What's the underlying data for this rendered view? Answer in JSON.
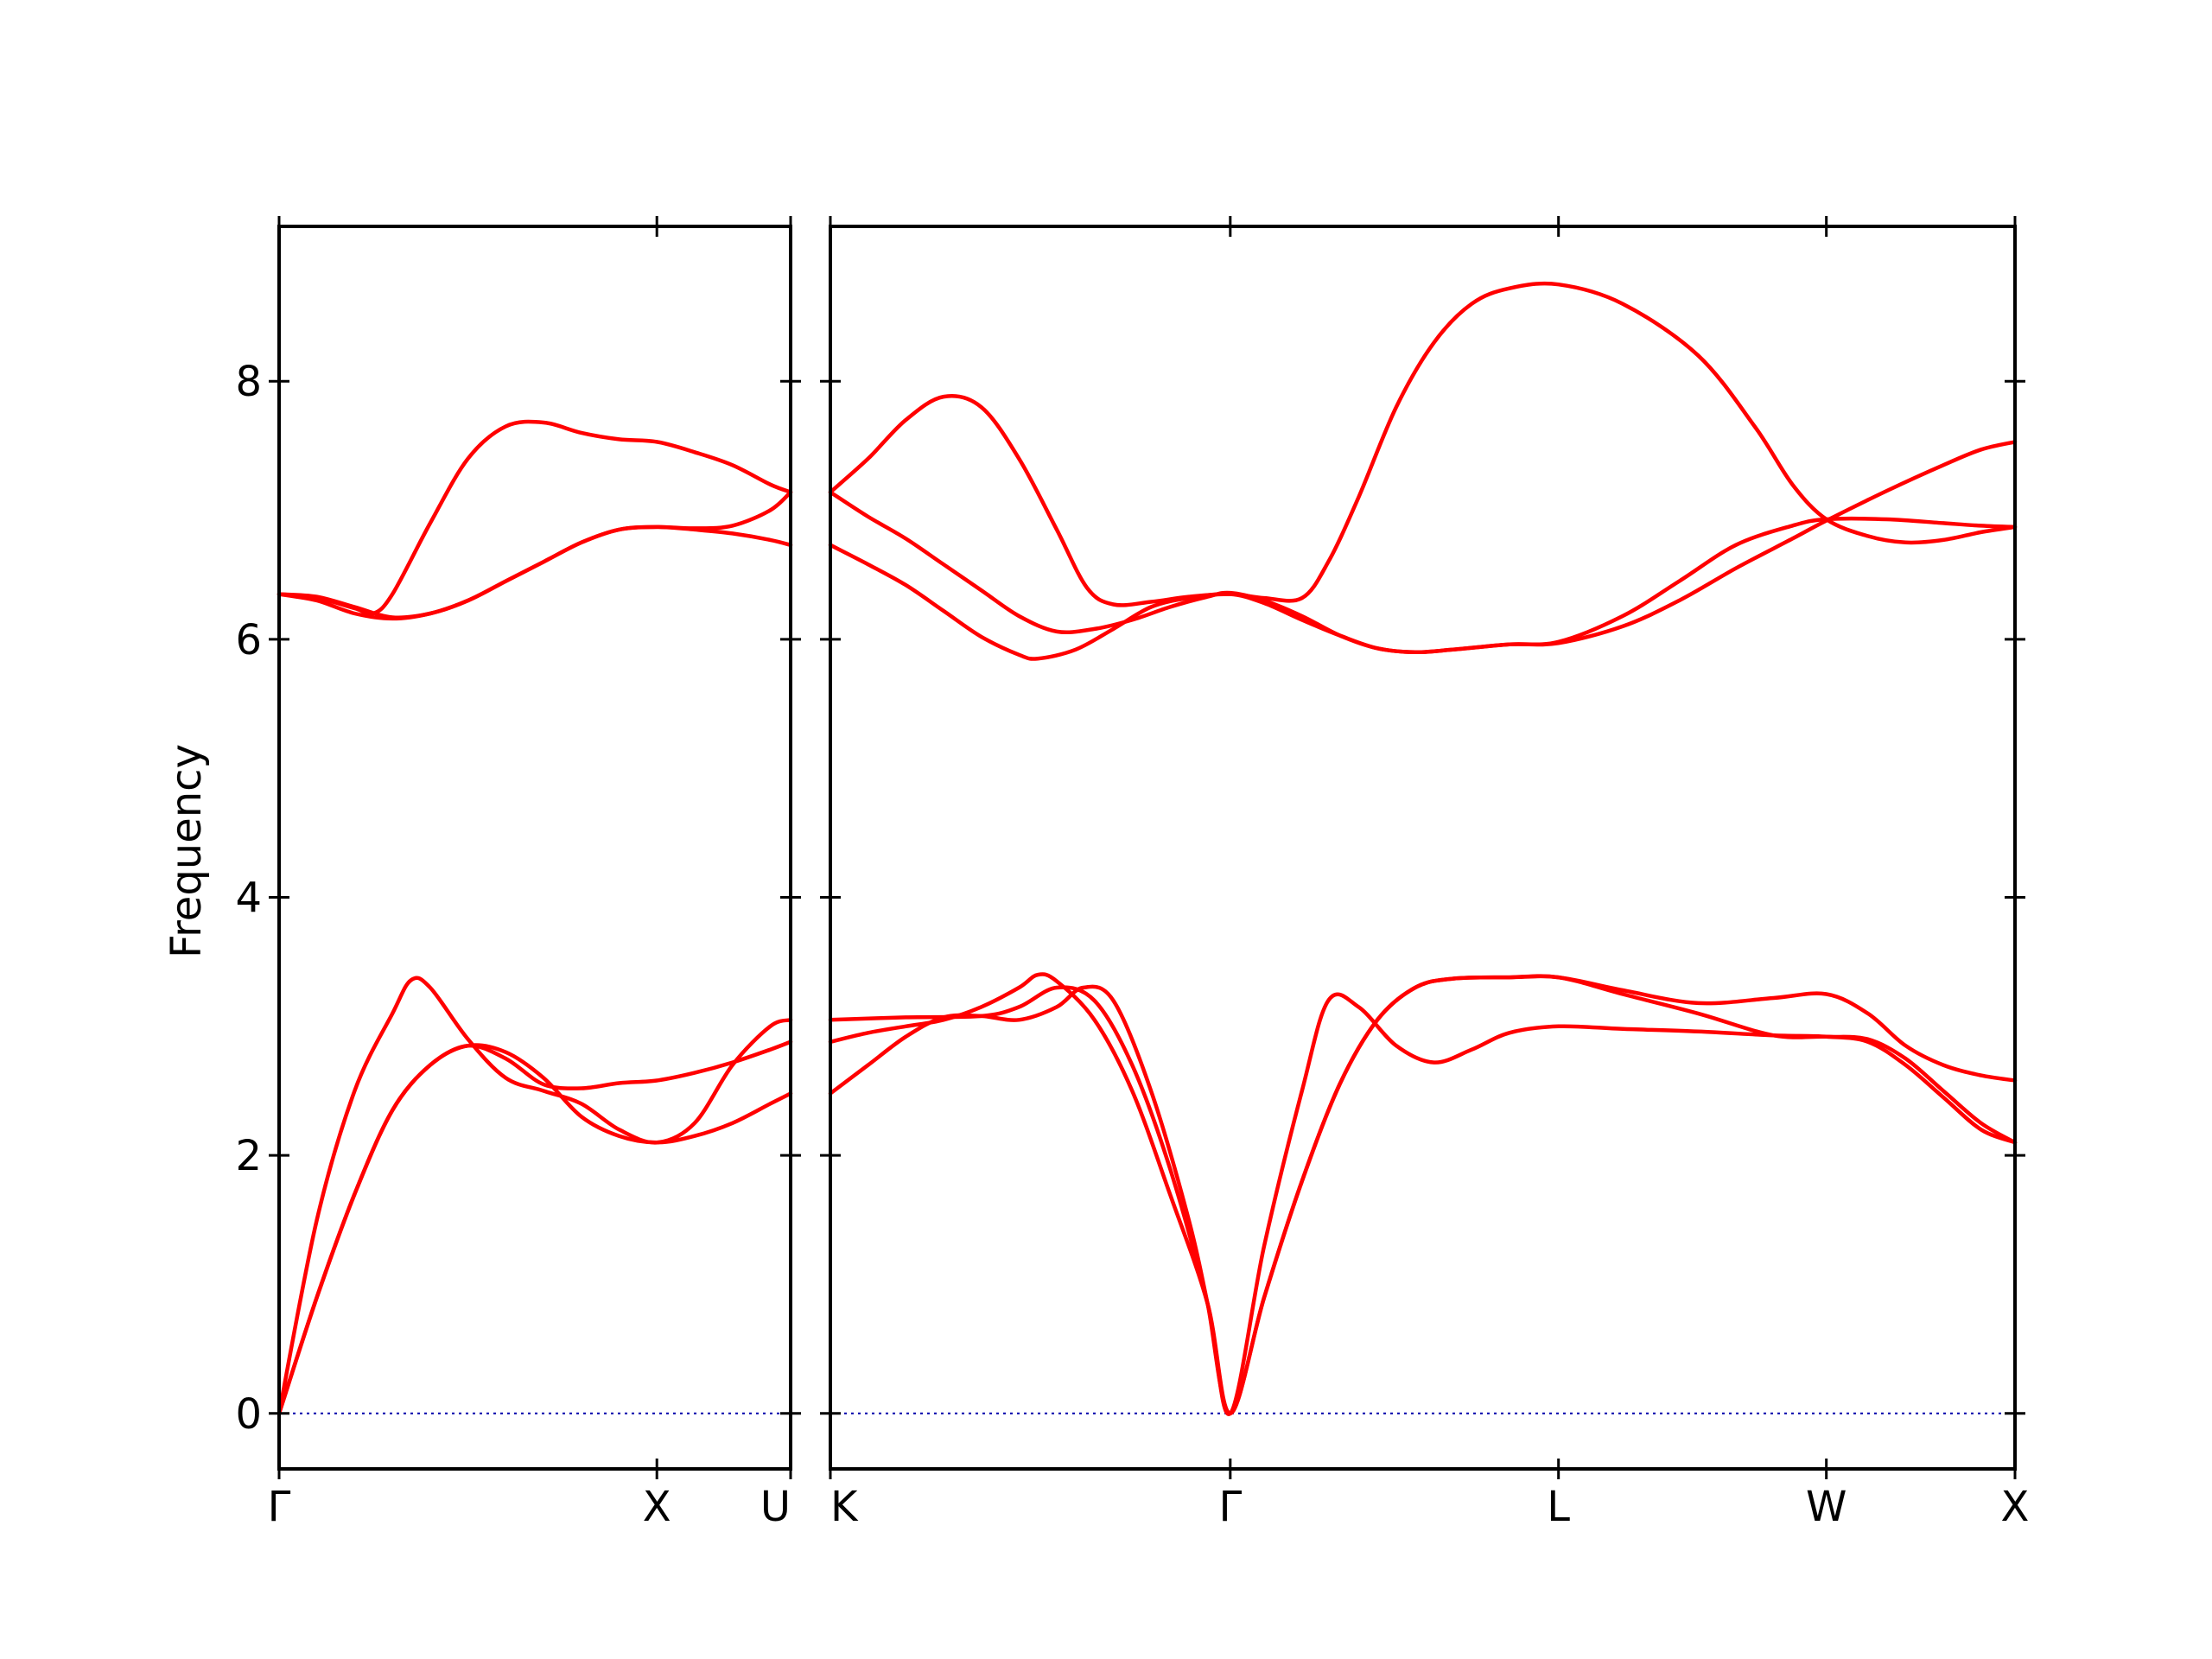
{
  "chart_data": {
    "type": "line",
    "ylabel": "Frequency",
    "ylim": [
      -0.43,
      9.2
    ],
    "yticks": [
      0,
      2,
      4,
      6,
      8
    ],
    "line_color": "#ff0000",
    "zero_line_color": "#0000aa",
    "grid": false,
    "panels": [
      {
        "xlim": [
          0,
          1.354
        ],
        "xticks": [
          {
            "x": 0,
            "label": "Γ"
          },
          {
            "x": 1.0,
            "label": "X"
          },
          {
            "x": 1.354,
            "label": "U"
          }
        ],
        "zero_line": true,
        "branches": [
          [
            [
              0,
              0
            ],
            [
              0.1,
              1.5
            ],
            [
              0.2,
              2.5
            ],
            [
              0.3,
              3.1
            ],
            [
              0.35,
              3.36
            ],
            [
              0.4,
              3.3
            ],
            [
              0.5,
              2.9
            ],
            [
              0.6,
              2.6
            ],
            [
              0.7,
              2.5
            ],
            [
              0.8,
              2.4
            ],
            [
              0.9,
              2.2
            ],
            [
              1.0,
              2.1
            ],
            [
              1.1,
              2.25
            ],
            [
              1.2,
              2.7
            ],
            [
              1.3,
              3.0
            ],
            [
              1.354,
              3.05
            ]
          ],
          [
            [
              0,
              0
            ],
            [
              0.1,
              0.9
            ],
            [
              0.2,
              1.7
            ],
            [
              0.3,
              2.35
            ],
            [
              0.4,
              2.7
            ],
            [
              0.5,
              2.85
            ],
            [
              0.6,
              2.8
            ],
            [
              0.7,
              2.6
            ],
            [
              0.8,
              2.3
            ],
            [
              0.9,
              2.15
            ],
            [
              1.0,
              2.1
            ],
            [
              1.1,
              2.15
            ],
            [
              1.2,
              2.25
            ],
            [
              1.3,
              2.4
            ],
            [
              1.354,
              2.48
            ]
          ],
          [
            [
              0,
              0
            ],
            [
              0.1,
              0.9
            ],
            [
              0.2,
              1.7
            ],
            [
              0.3,
              2.35
            ],
            [
              0.4,
              2.7
            ],
            [
              0.5,
              2.85
            ],
            [
              0.6,
              2.75
            ],
            [
              0.7,
              2.55
            ],
            [
              0.8,
              2.52
            ],
            [
              0.9,
              2.56
            ],
            [
              1.0,
              2.58
            ],
            [
              1.1,
              2.64
            ],
            [
              1.2,
              2.72
            ],
            [
              1.3,
              2.82
            ],
            [
              1.354,
              2.88
            ]
          ],
          [
            [
              0,
              6.35
            ],
            [
              0.1,
              6.32
            ],
            [
              0.2,
              6.24
            ],
            [
              0.25,
              6.2
            ],
            [
              0.3,
              6.35
            ],
            [
              0.4,
              6.9
            ],
            [
              0.5,
              7.4
            ],
            [
              0.6,
              7.65
            ],
            [
              0.7,
              7.68
            ],
            [
              0.8,
              7.6
            ],
            [
              0.9,
              7.55
            ],
            [
              1.0,
              7.53
            ],
            [
              1.1,
              7.45
            ],
            [
              1.2,
              7.35
            ],
            [
              1.3,
              7.2
            ],
            [
              1.354,
              7.14
            ]
          ],
          [
            [
              0,
              6.35
            ],
            [
              0.1,
              6.3
            ],
            [
              0.2,
              6.2
            ],
            [
              0.3,
              6.16
            ],
            [
              0.4,
              6.2
            ],
            [
              0.5,
              6.3
            ],
            [
              0.6,
              6.45
            ],
            [
              0.7,
              6.6
            ],
            [
              0.8,
              6.75
            ],
            [
              0.9,
              6.85
            ],
            [
              1.0,
              6.87
            ],
            [
              1.1,
              6.85
            ],
            [
              1.2,
              6.82
            ],
            [
              1.3,
              6.77
            ],
            [
              1.354,
              6.73
            ]
          ],
          [
            [
              0,
              6.35
            ],
            [
              0.1,
              6.33
            ],
            [
              0.2,
              6.25
            ],
            [
              0.3,
              6.17
            ],
            [
              0.4,
              6.2
            ],
            [
              0.5,
              6.3
            ],
            [
              0.6,
              6.45
            ],
            [
              0.7,
              6.6
            ],
            [
              0.8,
              6.75
            ],
            [
              0.9,
              6.85
            ],
            [
              1.0,
              6.87
            ],
            [
              1.1,
              6.86
            ],
            [
              1.2,
              6.88
            ],
            [
              1.3,
              7.0
            ],
            [
              1.354,
              7.14
            ]
          ]
        ]
      },
      {
        "xlim": [
          0,
          3.14
        ],
        "xticks": [
          {
            "x": 0,
            "label": "K"
          },
          {
            "x": 1.06,
            "label": "Γ"
          },
          {
            "x": 1.93,
            "label": "L"
          },
          {
            "x": 2.64,
            "label": "W"
          },
          {
            "x": 3.14,
            "label": "X"
          }
        ],
        "zero_line": true,
        "branches": [
          [
            [
              0,
              3.05
            ],
            [
              0.2,
              3.07
            ],
            [
              0.4,
              3.08
            ],
            [
              0.5,
              3.15
            ],
            [
              0.6,
              3.3
            ],
            [
              0.7,
              3.2
            ],
            [
              0.8,
              2.7
            ],
            [
              0.9,
              1.9
            ],
            [
              1.0,
              0.85
            ],
            [
              1.06,
              0
            ],
            [
              1.15,
              1.3
            ],
            [
              1.25,
              2.5
            ],
            [
              1.32,
              3.2
            ],
            [
              1.4,
              3.15
            ],
            [
              1.5,
              2.85
            ],
            [
              1.6,
              2.72
            ],
            [
              1.7,
              2.82
            ],
            [
              1.8,
              2.95
            ],
            [
              1.93,
              3.0
            ],
            [
              2.1,
              2.98
            ],
            [
              2.3,
              2.96
            ],
            [
              2.5,
              2.93
            ],
            [
              2.64,
              2.92
            ],
            [
              2.75,
              2.88
            ],
            [
              2.85,
              2.7
            ],
            [
              2.95,
              2.45
            ],
            [
              3.05,
              2.2
            ],
            [
              3.14,
              2.1
            ]
          ],
          [
            [
              0,
              2.48
            ],
            [
              0.1,
              2.7
            ],
            [
              0.2,
              2.92
            ],
            [
              0.3,
              3.07
            ],
            [
              0.4,
              3.08
            ],
            [
              0.5,
              3.05
            ],
            [
              0.6,
              3.15
            ],
            [
              0.67,
              3.3
            ],
            [
              0.75,
              3.2
            ],
            [
              0.85,
              2.5
            ],
            [
              0.95,
              1.5
            ],
            [
              1.0,
              0.85
            ],
            [
              1.06,
              0
            ],
            [
              1.15,
              0.9
            ],
            [
              1.25,
              1.8
            ],
            [
              1.35,
              2.55
            ],
            [
              1.45,
              3.05
            ],
            [
              1.55,
              3.3
            ],
            [
              1.65,
              3.37
            ],
            [
              1.8,
              3.38
            ],
            [
              1.93,
              3.38
            ],
            [
              2.1,
              3.25
            ],
            [
              2.3,
              3.1
            ],
            [
              2.5,
              2.93
            ],
            [
              2.64,
              2.92
            ],
            [
              2.75,
              2.9
            ],
            [
              2.85,
              2.75
            ],
            [
              2.95,
              2.5
            ],
            [
              3.05,
              2.25
            ],
            [
              3.14,
              2.1
            ]
          ],
          [
            [
              0,
              2.88
            ],
            [
              0.1,
              2.95
            ],
            [
              0.2,
              3.0
            ],
            [
              0.3,
              3.05
            ],
            [
              0.4,
              3.15
            ],
            [
              0.5,
              3.3
            ],
            [
              0.55,
              3.4
            ],
            [
              0.6,
              3.35
            ],
            [
              0.7,
              3.05
            ],
            [
              0.8,
              2.5
            ],
            [
              0.9,
              1.7
            ],
            [
              1.0,
              0.85
            ],
            [
              1.06,
              0
            ],
            [
              1.15,
              0.9
            ],
            [
              1.25,
              1.8
            ],
            [
              1.35,
              2.55
            ],
            [
              1.45,
              3.05
            ],
            [
              1.55,
              3.3
            ],
            [
              1.65,
              3.37
            ],
            [
              1.8,
              3.38
            ],
            [
              1.93,
              3.38
            ],
            [
              2.1,
              3.28
            ],
            [
              2.3,
              3.18
            ],
            [
              2.5,
              3.22
            ],
            [
              2.64,
              3.25
            ],
            [
              2.75,
              3.1
            ],
            [
              2.85,
              2.85
            ],
            [
              2.95,
              2.7
            ],
            [
              3.05,
              2.62
            ],
            [
              3.14,
              2.58
            ]
          ],
          [
            [
              0,
              7.14
            ],
            [
              0.1,
              7.4
            ],
            [
              0.2,
              7.7
            ],
            [
              0.3,
              7.88
            ],
            [
              0.4,
              7.8
            ],
            [
              0.5,
              7.4
            ],
            [
              0.6,
              6.85
            ],
            [
              0.68,
              6.4
            ],
            [
              0.75,
              6.27
            ],
            [
              0.85,
              6.29
            ],
            [
              0.95,
              6.33
            ],
            [
              1.06,
              6.35
            ],
            [
              1.15,
              6.32
            ],
            [
              1.25,
              6.32
            ],
            [
              1.32,
              6.6
            ],
            [
              1.4,
              7.1
            ],
            [
              1.5,
              7.8
            ],
            [
              1.6,
              8.3
            ],
            [
              1.7,
              8.6
            ],
            [
              1.8,
              8.72
            ],
            [
              1.93,
              8.75
            ],
            [
              2.1,
              8.6
            ],
            [
              2.3,
              8.2
            ],
            [
              2.45,
              7.65
            ],
            [
              2.55,
              7.2
            ],
            [
              2.64,
              6.93
            ],
            [
              2.75,
              6.8
            ],
            [
              2.85,
              6.75
            ],
            [
              2.95,
              6.77
            ],
            [
              3.05,
              6.83
            ],
            [
              3.14,
              6.87
            ]
          ],
          [
            [
              0,
              7.14
            ],
            [
              0.1,
              6.95
            ],
            [
              0.2,
              6.78
            ],
            [
              0.3,
              6.58
            ],
            [
              0.4,
              6.38
            ],
            [
              0.5,
              6.18
            ],
            [
              0.6,
              6.06
            ],
            [
              0.7,
              6.08
            ],
            [
              0.8,
              6.15
            ],
            [
              0.9,
              6.25
            ],
            [
              1.0,
              6.33
            ],
            [
              1.06,
              6.36
            ],
            [
              1.15,
              6.3
            ],
            [
              1.25,
              6.18
            ],
            [
              1.35,
              6.03
            ],
            [
              1.45,
              5.93
            ],
            [
              1.55,
              5.9
            ],
            [
              1.65,
              5.92
            ],
            [
              1.8,
              5.96
            ],
            [
              1.93,
              5.97
            ],
            [
              2.1,
              6.1
            ],
            [
              2.25,
              6.3
            ],
            [
              2.4,
              6.55
            ],
            [
              2.55,
              6.78
            ],
            [
              2.64,
              6.92
            ],
            [
              2.8,
              7.15
            ],
            [
              2.95,
              7.35
            ],
            [
              3.05,
              7.47
            ],
            [
              3.14,
              7.53
            ]
          ],
          [
            [
              0,
              6.73
            ],
            [
              0.1,
              6.58
            ],
            [
              0.2,
              6.42
            ],
            [
              0.3,
              6.22
            ],
            [
              0.4,
              6.02
            ],
            [
              0.5,
              5.88
            ],
            [
              0.55,
              5.85
            ],
            [
              0.65,
              5.92
            ],
            [
              0.75,
              6.08
            ],
            [
              0.85,
              6.25
            ],
            [
              0.95,
              6.32
            ],
            [
              1.06,
              6.35
            ],
            [
              1.15,
              6.28
            ],
            [
              1.25,
              6.15
            ],
            [
              1.35,
              6.03
            ],
            [
              1.45,
              5.93
            ],
            [
              1.55,
              5.9
            ],
            [
              1.65,
              5.92
            ],
            [
              1.8,
              5.96
            ],
            [
              1.93,
              5.98
            ],
            [
              2.1,
              6.18
            ],
            [
              2.25,
              6.45
            ],
            [
              2.4,
              6.73
            ],
            [
              2.55,
              6.88
            ],
            [
              2.64,
              6.93
            ],
            [
              2.8,
              6.93
            ],
            [
              2.95,
              6.9
            ],
            [
              3.05,
              6.88
            ],
            [
              3.14,
              6.87
            ]
          ]
        ]
      }
    ]
  }
}
